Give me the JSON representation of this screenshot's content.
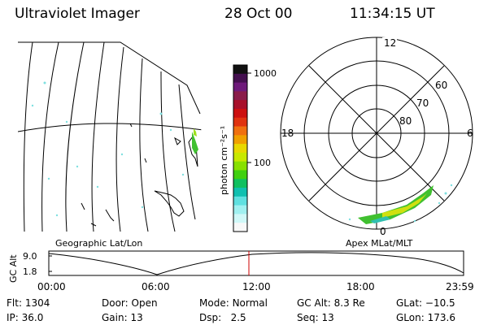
{
  "header": {
    "title": "Ultraviolet Imager",
    "date": "28 Oct 00",
    "time": "11:34:15 UT"
  },
  "colorbar": {
    "unit_label": "photon cm⁻²s⁻¹",
    "tick_labels": [
      "1000",
      "100"
    ],
    "colors": [
      "#111111",
      "#44104f",
      "#6e1a7a",
      "#8a1c4a",
      "#a8102a",
      "#cc1010",
      "#e03310",
      "#f07010",
      "#f0a000",
      "#e8d800",
      "#c8e800",
      "#88e000",
      "#40d010",
      "#10c060",
      "#10c0b0",
      "#60e0e0",
      "#a0f0f0",
      "#d0f8f8",
      "#f8f8f8"
    ]
  },
  "geo_panel": {
    "caption": "Geographic Lat/Lon"
  },
  "polar_panel": {
    "caption": "Apex MLat/MLT",
    "lat_labels": [
      "80",
      "70",
      "60"
    ],
    "mlt_labels": {
      "top": "12",
      "left": "18",
      "right": "6",
      "bottom": "0"
    }
  },
  "altitude_strip": {
    "axis_label": "GC Alt",
    "y_ticks": [
      "9.0",
      "1.8"
    ],
    "time_ticks": [
      "00:00",
      "06:00",
      "12:00",
      "18:00",
      "23:59"
    ],
    "marker_color": "#cc0000"
  },
  "status": {
    "flt_label": "Flt:",
    "flt_value": "1304",
    "ip_label": "IP:",
    "ip_value": "36.0",
    "door_label": "Door:",
    "door_value": "Open",
    "gain_label": "Gain:",
    "gain_value": "13",
    "mode_label": "Mode:",
    "mode_value": "Normal",
    "dsp_label": "Dsp:",
    "dsp_value": "2.5",
    "gcalt_label": "GC Alt:",
    "gcalt_value": "8.3 Re",
    "seq_label": "Seq:",
    "seq_value": "13",
    "glat_label": "GLat:",
    "glat_value": "−10.5",
    "glon_label": "GLon:",
    "glon_value": "173.6"
  }
}
